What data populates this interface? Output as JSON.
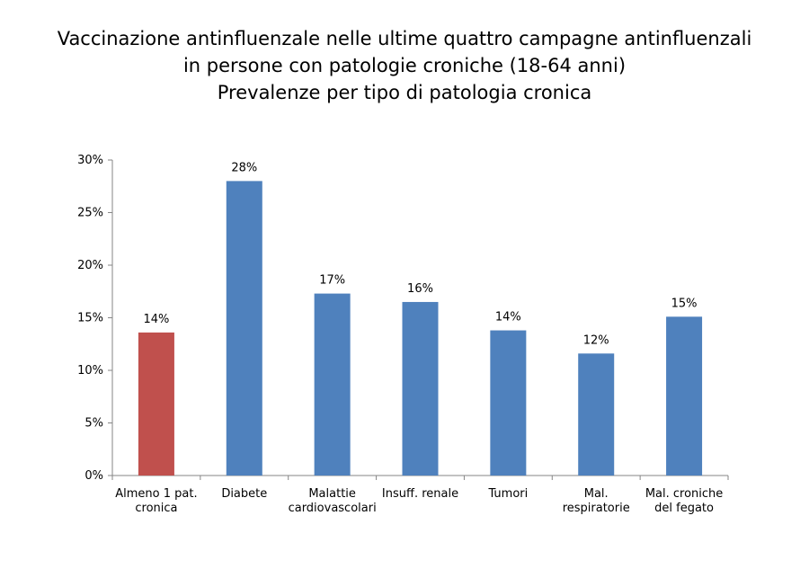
{
  "title_lines": [
    "Vaccinazione antinfluenzale nelle ultime quattro campagne antinfluenzali",
    "in persone con patologie croniche (18-64 anni)",
    "Prevalenze per tipo di patologia cronica"
  ],
  "chart_data": {
    "type": "bar",
    "categories": [
      [
        "Almeno 1 pat.",
        "cronica"
      ],
      [
        "Diabete"
      ],
      [
        "Malattie",
        "cardiovascolari"
      ],
      [
        "Insuff. renale"
      ],
      [
        "Tumori"
      ],
      [
        "Mal.",
        "respiratorie"
      ],
      [
        "Mal. croniche",
        "del fegato"
      ]
    ],
    "values": [
      13.6,
      28.0,
      17.3,
      16.5,
      13.8,
      11.6,
      15.1
    ],
    "data_labels": [
      "14%",
      "28%",
      "17%",
      "16%",
      "14%",
      "12%",
      "15%"
    ],
    "colors": [
      "#c0504d",
      "#4f81bd",
      "#4f81bd",
      "#4f81bd",
      "#4f81bd",
      "#4f81bd",
      "#4f81bd"
    ],
    "yticks": [
      "0%",
      "5%",
      "10%",
      "15%",
      "20%",
      "25%",
      "30%"
    ],
    "ylim": [
      0,
      30
    ],
    "grid": false,
    "legend": "none"
  }
}
